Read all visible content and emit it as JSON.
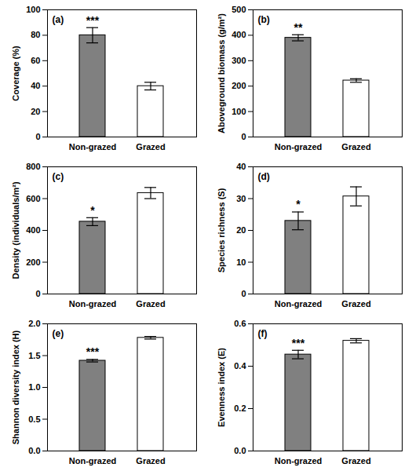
{
  "chart_data": [
    {
      "type": "bar",
      "title": "(a)",
      "ylabel": "Coverage (%)",
      "categories": [
        "Non-grazed",
        "Grazed"
      ],
      "values": [
        80,
        40
      ],
      "errors": [
        6,
        3
      ],
      "colors": [
        "#808080",
        "#ffffff"
      ],
      "ylim": [
        0,
        100
      ],
      "yticks": [
        0,
        20,
        40,
        60,
        80,
        100
      ],
      "annotations": [
        {
          "category": "Non-grazed",
          "text": "***"
        }
      ]
    },
    {
      "type": "bar",
      "title": "(b)",
      "ylabel": "Aboveground biomass (g/m²)",
      "categories": [
        "Non-grazed",
        "Grazed"
      ],
      "values": [
        390,
        222
      ],
      "errors": [
        12,
        7
      ],
      "colors": [
        "#808080",
        "#ffffff"
      ],
      "ylim": [
        0,
        500
      ],
      "yticks": [
        0,
        100,
        200,
        300,
        400,
        500
      ],
      "annotations": [
        {
          "category": "Non-grazed",
          "text": "**"
        }
      ]
    },
    {
      "type": "bar",
      "title": "(c)",
      "ylabel": "Density (individuals/m²)",
      "categories": [
        "Non-grazed",
        "Grazed"
      ],
      "values": [
        455,
        635
      ],
      "errors": [
        25,
        35
      ],
      "colors": [
        "#808080",
        "#ffffff"
      ],
      "ylim": [
        0,
        800
      ],
      "yticks": [
        0,
        200,
        400,
        600,
        800
      ],
      "annotations": [
        {
          "category": "Non-grazed",
          "text": "*"
        }
      ]
    },
    {
      "type": "bar",
      "title": "(d)",
      "ylabel": "Species richness (S)",
      "categories": [
        "Non-grazed",
        "Grazed"
      ],
      "values": [
        23,
        30.7
      ],
      "errors": [
        2.8,
        3
      ],
      "colors": [
        "#808080",
        "#ffffff"
      ],
      "ylim": [
        0,
        40
      ],
      "yticks": [
        0,
        10,
        20,
        30,
        40
      ],
      "annotations": [
        {
          "category": "Non-grazed",
          "text": "*"
        }
      ]
    },
    {
      "type": "bar",
      "title": "(e)",
      "ylabel": "Shannon diversity index (H)",
      "categories": [
        "Non-grazed",
        "Grazed"
      ],
      "values": [
        1.42,
        1.78
      ],
      "errors": [
        0.02,
        0.02
      ],
      "colors": [
        "#808080",
        "#ffffff"
      ],
      "ylim": [
        0,
        2
      ],
      "yticks": [
        {
          "value": 0,
          "label": "0.0"
        },
        {
          "value": 0.5,
          "label": "0.5"
        },
        {
          "value": 1,
          "label": "1.0"
        },
        {
          "value": 1.5,
          "label": "1.5"
        },
        {
          "value": 2,
          "label": "2.0"
        }
      ],
      "annotations": [
        {
          "category": "Non-grazed",
          "text": "***"
        }
      ]
    },
    {
      "type": "bar",
      "title": "(f)",
      "ylabel": "Evenness index (E)",
      "categories": [
        "Non-grazed",
        "Grazed"
      ],
      "values": [
        0.455,
        0.52
      ],
      "errors": [
        0.02,
        0.01
      ],
      "colors": [
        "#808080",
        "#ffffff"
      ],
      "ylim": [
        0,
        0.6
      ],
      "yticks": [
        {
          "value": 0,
          "label": "0.0"
        },
        0.2,
        0.4,
        0.6
      ],
      "annotations": [
        {
          "category": "Non-grazed",
          "text": "***"
        }
      ]
    }
  ]
}
